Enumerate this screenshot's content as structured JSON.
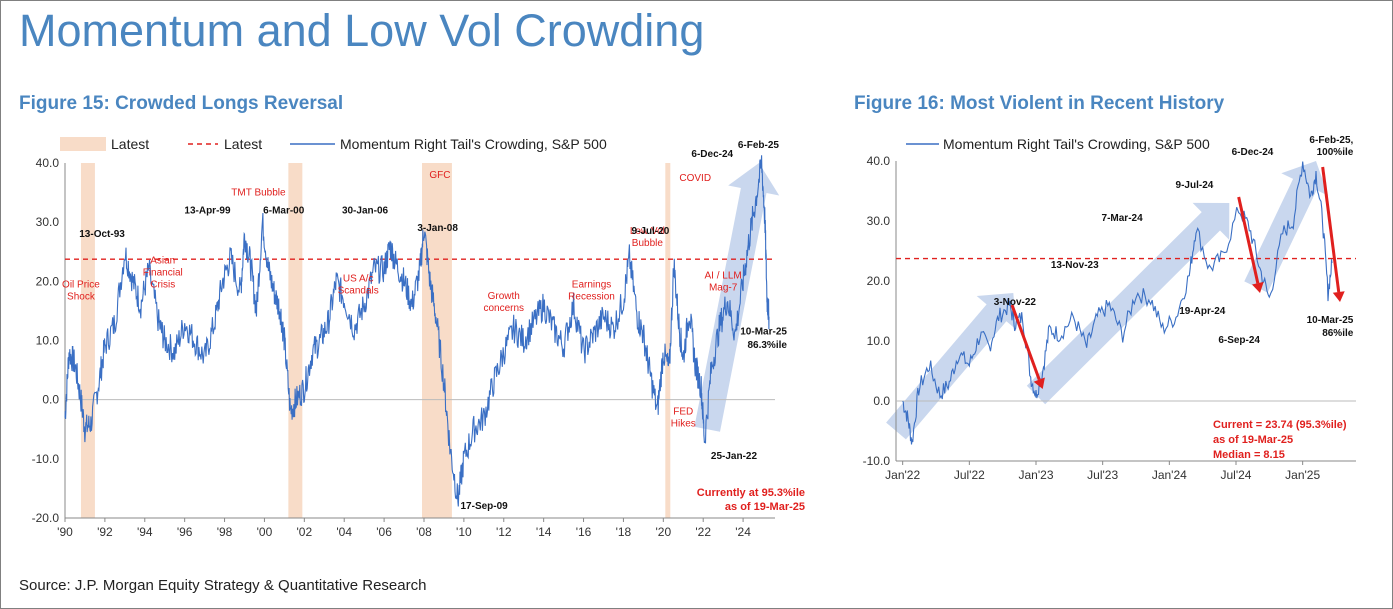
{
  "page": {
    "title": "Momentum and Low Vol Crowding",
    "source": "Source: J.P. Morgan Equity Strategy & Quantitative Research"
  },
  "colors": {
    "title": "#4a86c0",
    "series": "#3a6fc4",
    "band": "#f8dcc8",
    "threshold": "#e0201e",
    "arrow": "#9cb6e0"
  },
  "chart_data": [
    {
      "id": "fig15",
      "type": "line",
      "title": "Figure 15: Crowded Longs Reversal",
      "legend": [
        {
          "name": "Latest",
          "style": "band"
        },
        {
          "name": "Latest",
          "style": "dashed-red"
        },
        {
          "name": "Momentum Right Tail's Crowding, S&P 500",
          "style": "line"
        }
      ],
      "legend_position": "top",
      "xlim": [
        1990,
        2025.6
      ],
      "ylim": [
        -20,
        40
      ],
      "yticks": [
        {
          "v": -20,
          "label": "-20.0"
        },
        {
          "v": -10,
          "label": "-10.0"
        },
        {
          "v": 0,
          "label": "0.0"
        },
        {
          "v": 10,
          "label": "10.0"
        },
        {
          "v": 20,
          "label": "20.0"
        },
        {
          "v": 30,
          "label": "30.0"
        },
        {
          "v": 40,
          "label": "40.0"
        }
      ],
      "xticks": [
        {
          "v": 1990,
          "label": "'90"
        },
        {
          "v": 1992,
          "label": "'92"
        },
        {
          "v": 1994,
          "label": "'94"
        },
        {
          "v": 1996,
          "label": "'96"
        },
        {
          "v": 1998,
          "label": "'98"
        },
        {
          "v": 2000,
          "label": "'00"
        },
        {
          "v": 2002,
          "label": "'02"
        },
        {
          "v": 2004,
          "label": "'04"
        },
        {
          "v": 2006,
          "label": "'06"
        },
        {
          "v": 2008,
          "label": "'08"
        },
        {
          "v": 2010,
          "label": "'10"
        },
        {
          "v": 2012,
          "label": "'12"
        },
        {
          "v": 2014,
          "label": "'14"
        },
        {
          "v": 2016,
          "label": "'16"
        },
        {
          "v": 2018,
          "label": "'18"
        },
        {
          "v": 2020,
          "label": "'20"
        },
        {
          "v": 2022,
          "label": "'22"
        },
        {
          "v": 2024,
          "label": "'24"
        }
      ],
      "threshold": 23.74,
      "bands": [
        [
          1990.8,
          1991.5
        ],
        [
          2001.2,
          2001.9
        ],
        [
          2007.9,
          2009.4
        ],
        [
          2020.1,
          2020.35
        ]
      ],
      "series": [
        {
          "name": "Momentum Right Tail's Crowding, S&P 500",
          "x": [
            1990.0,
            1990.2,
            1990.5,
            1990.8,
            1991.0,
            1991.3,
            1991.7,
            1992.0,
            1992.5,
            1993.0,
            1993.4,
            1993.8,
            1994.2,
            1994.7,
            1995.0,
            1995.5,
            1996.0,
            1996.5,
            1997.0,
            1997.5,
            1997.9,
            1998.3,
            1998.8,
            1999.0,
            1999.3,
            1999.6,
            1999.9,
            2000.2,
            2000.5,
            2000.8,
            2001.0,
            2001.3,
            2001.6,
            2002.0,
            2002.4,
            2002.8,
            2003.2,
            2003.6,
            2004.0,
            2004.5,
            2005.0,
            2005.5,
            2006.0,
            2006.3,
            2006.6,
            2007.0,
            2007.4,
            2007.8,
            2008.0,
            2008.3,
            2008.6,
            2009.0,
            2009.3,
            2009.7,
            2010.0,
            2010.5,
            2011.0,
            2011.5,
            2012.0,
            2012.5,
            2013.0,
            2013.5,
            2014.0,
            2014.5,
            2015.0,
            2015.5,
            2016.0,
            2016.5,
            2017.0,
            2017.5,
            2018.0,
            2018.3,
            2018.7,
            2019.0,
            2019.3,
            2019.7,
            2020.0,
            2020.3,
            2020.53,
            2020.8,
            2021.0,
            2021.3,
            2021.6,
            2021.9,
            2022.07,
            2022.4,
            2022.8,
            2023.2,
            2023.6,
            2024.0,
            2024.3,
            2024.6,
            2024.93,
            2025.1,
            2025.2,
            2025.3
          ],
          "y": [
            -3,
            8,
            6,
            0,
            -5,
            -4,
            3,
            9,
            13,
            25,
            20,
            16,
            22,
            13,
            10,
            8,
            13,
            10,
            7,
            13,
            20,
            24,
            18,
            28,
            23,
            15,
            30,
            22,
            18,
            15,
            10,
            -2,
            0,
            2,
            8,
            10,
            13,
            20,
            17,
            12,
            16,
            22,
            22,
            26,
            23,
            20,
            16,
            22,
            29,
            20,
            14,
            3,
            -8,
            -17,
            -10,
            -5,
            -3,
            3,
            8,
            12,
            10,
            13,
            16,
            12,
            9,
            16,
            8,
            11,
            14,
            12,
            17,
            24,
            14,
            11,
            5,
            -2,
            8,
            5,
            23,
            12,
            7,
            15,
            6,
            2,
            -7,
            5,
            12,
            17,
            11,
            20,
            27,
            33,
            40,
            30,
            17,
            14
          ]
        }
      ],
      "arrow": {
        "from": [
          2022.2,
          -5
        ],
        "to": [
          2024.8,
          40
        ]
      },
      "event_labels": [
        {
          "x": 1990.8,
          "y": 19,
          "lines": [
            "Oil Price",
            "Shock"
          ]
        },
        {
          "x": 1994.9,
          "y": 23,
          "lines": [
            "Asian",
            "Financial",
            "Crisis"
          ]
        },
        {
          "x": 1999.7,
          "y": 34.5,
          "lines": [
            "TMT Bubble"
          ]
        },
        {
          "x": 2004.7,
          "y": 20,
          "lines": [
            "US A/c",
            "Scandals"
          ]
        },
        {
          "x": 2008.8,
          "y": 37.5,
          "lines": [
            "GFC"
          ]
        },
        {
          "x": 2012.0,
          "y": 17,
          "lines": [
            "Growth",
            "concerns"
          ]
        },
        {
          "x": 2016.4,
          "y": 19,
          "lines": [
            "Earnings",
            "Recession"
          ]
        },
        {
          "x": 2019.2,
          "y": 28,
          "lines": [
            "Low Vol",
            "Bubble"
          ]
        },
        {
          "x": 2021.6,
          "y": 37,
          "lines": [
            "COVID"
          ]
        },
        {
          "x": 2021.0,
          "y": -2.5,
          "lines": [
            "FED",
            "Hikes"
          ]
        },
        {
          "x": 2023.0,
          "y": 20.5,
          "lines": [
            "AI / LLM",
            "Mag-7"
          ]
        }
      ],
      "date_labels": [
        {
          "x": 1993.0,
          "y": 27.5,
          "text": "13-Oct-93"
        },
        {
          "x": 1998.3,
          "y": 31.5,
          "text": "13-Apr-99"
        },
        {
          "x": 2002.0,
          "y": 31.5,
          "text": "6-Mar-00"
        },
        {
          "x": 2006.2,
          "y": 31.5,
          "text": "30-Jan-06"
        },
        {
          "x": 2009.7,
          "y": 28.5,
          "text": "3-Jan-08"
        },
        {
          "x": 2020.3,
          "y": 28,
          "text": "9-Jul-20"
        },
        {
          "x": 2023.5,
          "y": 41,
          "text": "6-Dec-24"
        },
        {
          "x": 2025.8,
          "y": 42.5,
          "text": "6-Feb-25"
        },
        {
          "x": 2024.7,
          "y": -10,
          "text": "25-Jan-22"
        },
        {
          "x": 2012.2,
          "y": -18.5,
          "text": "17-Sep-09"
        },
        {
          "x": 2026.2,
          "y": 11,
          "text": "10-Mar-25"
        },
        {
          "x": 2026.2,
          "y": 8.7,
          "text": "86.3%ile"
        }
      ],
      "note_lines": [
        "Currently at 95.3%ile",
        "as of 19-Mar-25"
      ]
    },
    {
      "id": "fig16",
      "type": "line",
      "title": "Figure 16: Most Violent in Recent History",
      "legend": [
        {
          "name": "Momentum Right Tail's Crowding, S&P 500",
          "style": "line"
        }
      ],
      "legend_position": "top",
      "xlim": [
        2021.95,
        2025.4
      ],
      "ylim": [
        -10,
        40
      ],
      "yticks": [
        {
          "v": -10,
          "label": "-10.0"
        },
        {
          "v": 0,
          "label": "0.0"
        },
        {
          "v": 10,
          "label": "10.0"
        },
        {
          "v": 20,
          "label": "20.0"
        },
        {
          "v": 30,
          "label": "30.0"
        },
        {
          "v": 40,
          "label": "40.0"
        }
      ],
      "xticks": [
        {
          "v": 2022.0,
          "label": "Jan'22"
        },
        {
          "v": 2022.5,
          "label": "Jul'22"
        },
        {
          "v": 2023.0,
          "label": "Jan'23"
        },
        {
          "v": 2023.5,
          "label": "Jul'23"
        },
        {
          "v": 2024.0,
          "label": "Jan'24"
        },
        {
          "v": 2024.5,
          "label": "Jul'24"
        },
        {
          "v": 2025.0,
          "label": "Jan'25"
        }
      ],
      "threshold": 23.74,
      "series": [
        {
          "name": "Momentum Right Tail's Crowding, S&P 500",
          "x": [
            2022.0,
            2022.04,
            2022.07,
            2022.12,
            2022.2,
            2022.28,
            2022.35,
            2022.42,
            2022.5,
            2022.58,
            2022.65,
            2022.72,
            2022.8,
            2022.84,
            2022.9,
            2022.96,
            2023.0,
            2023.05,
            2023.1,
            2023.18,
            2023.28,
            2023.38,
            2023.46,
            2023.55,
            2023.65,
            2023.75,
            2023.86,
            2023.95,
            2024.05,
            2024.15,
            2024.2,
            2024.3,
            2024.4,
            2024.52,
            2024.6,
            2024.68,
            2024.75,
            2024.85,
            2024.93,
            2025.0,
            2025.06,
            2025.1,
            2025.15,
            2025.19,
            2025.22
          ],
          "y": [
            0,
            -3,
            -7,
            2,
            6,
            1,
            3,
            8,
            6,
            11,
            9,
            14,
            16,
            13,
            14,
            4,
            1,
            5,
            12,
            11,
            14,
            9,
            14,
            16,
            11,
            18,
            17,
            12,
            14,
            21,
            29,
            22,
            24,
            32,
            29,
            22,
            17,
            28,
            30,
            40,
            34,
            38,
            30,
            18,
            23
          ]
        }
      ],
      "arrows_blue": [
        {
          "from": [
            2021.95,
            -5
          ],
          "to": [
            2022.83,
            18
          ]
        },
        {
          "from": [
            2023.0,
            1
          ],
          "to": [
            2024.45,
            33
          ]
        },
        {
          "from": [
            2024.65,
            19
          ],
          "to": [
            2025.1,
            40
          ]
        }
      ],
      "arrows_red": [
        {
          "from": [
            2022.82,
            16
          ],
          "to": [
            2023.05,
            2
          ]
        },
        {
          "from": [
            2024.52,
            34
          ],
          "to": [
            2024.68,
            18
          ]
        },
        {
          "from": [
            2025.15,
            39
          ],
          "to": [
            2025.28,
            16.5
          ]
        }
      ],
      "date_labels": [
        {
          "x": 2024.33,
          "y": 35.5,
          "text": "9-Jul-24"
        },
        {
          "x": 2023.8,
          "y": 30,
          "text": "7-Mar-24"
        },
        {
          "x": 2024.78,
          "y": 41,
          "text": "6-Dec-24"
        },
        {
          "x": 2025.38,
          "y": 43,
          "text": "6-Feb-25,"
        },
        {
          "x": 2025.38,
          "y": 41,
          "text": "100%ile"
        },
        {
          "x": 2023.47,
          "y": 22.2,
          "text": "13-Nov-23"
        },
        {
          "x": 2023.0,
          "y": 16,
          "text": "3-Nov-22"
        },
        {
          "x": 2024.42,
          "y": 14.5,
          "text": "19-Apr-24"
        },
        {
          "x": 2024.68,
          "y": 9.7,
          "text": "6-Sep-24"
        },
        {
          "x": 2025.38,
          "y": 13,
          "text": "10-Mar-25"
        },
        {
          "x": 2025.38,
          "y": 10.8,
          "text": "86%ile"
        }
      ],
      "note_lines": [
        "Current = 23.74 (95.3%ile)",
        "as of 19-Mar-25",
        "Median = 8.15"
      ]
    }
  ]
}
